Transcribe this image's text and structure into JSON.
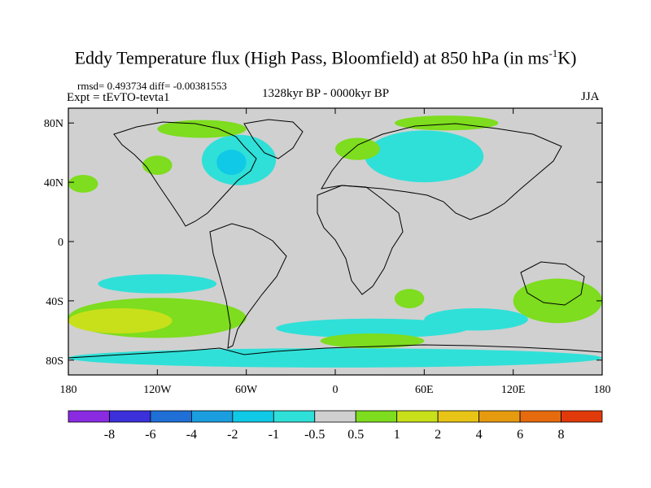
{
  "header": {
    "title_main": "Eddy Temperature flux (High Pass, Bloomfield) at 850 hPa (in ms",
    "title_sup": "-1",
    "title_end": "K)",
    "stats": "rmsd= 0.493734 diff= -0.00381553",
    "experiment": "Expt = tEvTO-tevta1",
    "period": "1328kyr BP - 0000kyr BP",
    "season": "JJA"
  },
  "axes": {
    "x_ticks": [
      {
        "value": -180,
        "label": "180"
      },
      {
        "value": -120,
        "label": "120W"
      },
      {
        "value": -60,
        "label": "60W"
      },
      {
        "value": 0,
        "label": "0"
      },
      {
        "value": 60,
        "label": "60E"
      },
      {
        "value": 120,
        "label": "120E"
      },
      {
        "value": 180,
        "label": "180"
      }
    ],
    "y_ticks": [
      {
        "value": 80,
        "label": "80N"
      },
      {
        "value": 40,
        "label": "40N"
      },
      {
        "value": 0,
        "label": "0"
      },
      {
        "value": -40,
        "label": "40S"
      },
      {
        "value": -80,
        "label": "80S"
      }
    ],
    "lon_range": [
      -180,
      180
    ],
    "lat_range": [
      -90,
      90
    ]
  },
  "colorbar": {
    "labels": [
      "-8",
      "-6",
      "-4",
      "-2",
      "-1",
      "-0.5",
      "0.5",
      "1",
      "2",
      "4",
      "6",
      "8"
    ],
    "colors": [
      "#8a2be2",
      "#3b30d9",
      "#1f6fd6",
      "#1b9ee0",
      "#10c9e6",
      "#2fe0d8",
      "#d0d0d0",
      "#7ddd1e",
      "#c8e01a",
      "#e8c416",
      "#e69a10",
      "#e66a0e",
      "#e03a0a"
    ]
  },
  "field": {
    "background_color": "#d0d0d0",
    "anomaly_regions": [
      {
        "level": "-1",
        "color": "#2fe0d8",
        "lon": [
          -90,
          -40
        ],
        "lat": [
          38,
          72
        ]
      },
      {
        "level": "-2",
        "color": "#10c9e6",
        "lon": [
          -80,
          -60
        ],
        "lat": [
          45,
          62
        ]
      },
      {
        "level": "-1",
        "color": "#2fe0d8",
        "lon": [
          20,
          100
        ],
        "lat": [
          40,
          75
        ]
      },
      {
        "level": "1",
        "color": "#7ddd1e",
        "lon": [
          -120,
          -60
        ],
        "lat": [
          70,
          82
        ]
      },
      {
        "level": "1",
        "color": "#7ddd1e",
        "lon": [
          0,
          30
        ],
        "lat": [
          55,
          70
        ]
      },
      {
        "level": "1",
        "color": "#7ddd1e",
        "lon": [
          40,
          110
        ],
        "lat": [
          75,
          85
        ]
      },
      {
        "level": "1",
        "color": "#7ddd1e",
        "lon": [
          -180,
          -160
        ],
        "lat": [
          33,
          45
        ]
      },
      {
        "level": "1",
        "color": "#7ddd1e",
        "lon": [
          -130,
          -110
        ],
        "lat": [
          45,
          58
        ]
      },
      {
        "level": "-1",
        "color": "#2fe0d8",
        "lon": [
          -160,
          -80
        ],
        "lat": [
          -35,
          -22
        ]
      },
      {
        "level": "1",
        "color": "#7ddd1e",
        "lon": [
          -180,
          -60
        ],
        "lat": [
          -65,
          -38
        ]
      },
      {
        "level": "2",
        "color": "#c8e01a",
        "lon": [
          -180,
          -110
        ],
        "lat": [
          -62,
          -45
        ]
      },
      {
        "level": "-1",
        "color": "#2fe0d8",
        "lon": [
          -40,
          90
        ],
        "lat": [
          -65,
          -52
        ]
      },
      {
        "level": "1",
        "color": "#7ddd1e",
        "lon": [
          -10,
          60
        ],
        "lat": [
          -72,
          -62
        ]
      },
      {
        "level": "1",
        "color": "#7ddd1e",
        "lon": [
          40,
          60
        ],
        "lat": [
          -45,
          -32
        ]
      },
      {
        "level": "1",
        "color": "#7ddd1e",
        "lon": [
          120,
          180
        ],
        "lat": [
          -55,
          -25
        ]
      },
      {
        "level": "-1",
        "color": "#2fe0d8",
        "lon": [
          60,
          130
        ],
        "lat": [
          -60,
          -45
        ]
      },
      {
        "level": "-1",
        "color": "#2fe0d8",
        "lon": [
          -180,
          180
        ],
        "lat": [
          -85,
          -72
        ]
      }
    ]
  }
}
